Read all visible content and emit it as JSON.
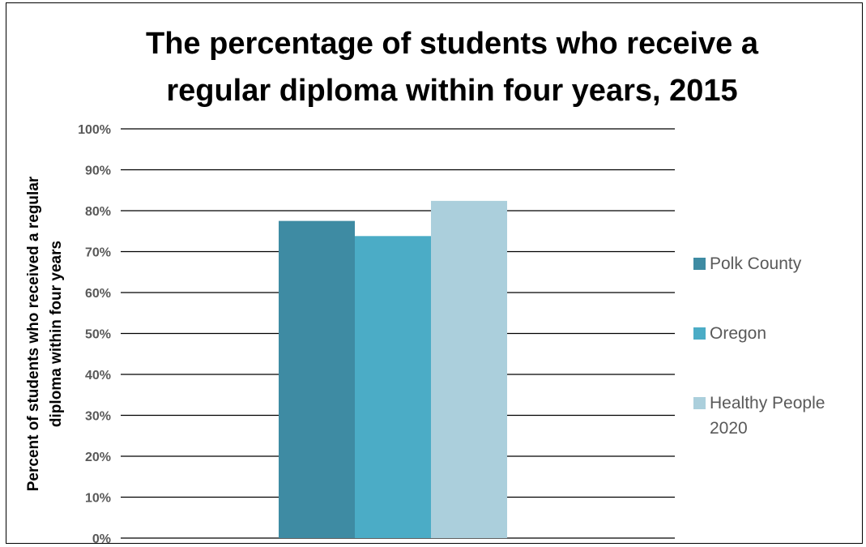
{
  "chart_data": {
    "type": "bar",
    "title_lines": [
      "The percentage of students who receive a",
      "regular diploma within four years, 2015"
    ],
    "ylabel_lines": [
      "Percent of students who received a regular",
      "diploma within four years"
    ],
    "xlabel": "",
    "categories": [
      ""
    ],
    "series": [
      {
        "name": "Polk County",
        "values": [
          77.5
        ],
        "color": "#3e8ba3"
      },
      {
        "name": "Oregon",
        "values": [
          73.8
        ],
        "color": "#4bacc6"
      },
      {
        "name": "Healthy People 2020",
        "values": [
          82.4
        ],
        "color": "#abcfdc"
      }
    ],
    "ylim": [
      0,
      100
    ],
    "yticks": [
      "0%",
      "10%",
      "20%",
      "30%",
      "40%",
      "50%",
      "60%",
      "70%",
      "80%",
      "90%",
      "100%"
    ],
    "grid": true,
    "legend_position": "right",
    "legend_lines": [
      [
        "Polk County"
      ],
      [
        "Oregon"
      ],
      [
        "Healthy People",
        "2020"
      ]
    ]
  }
}
